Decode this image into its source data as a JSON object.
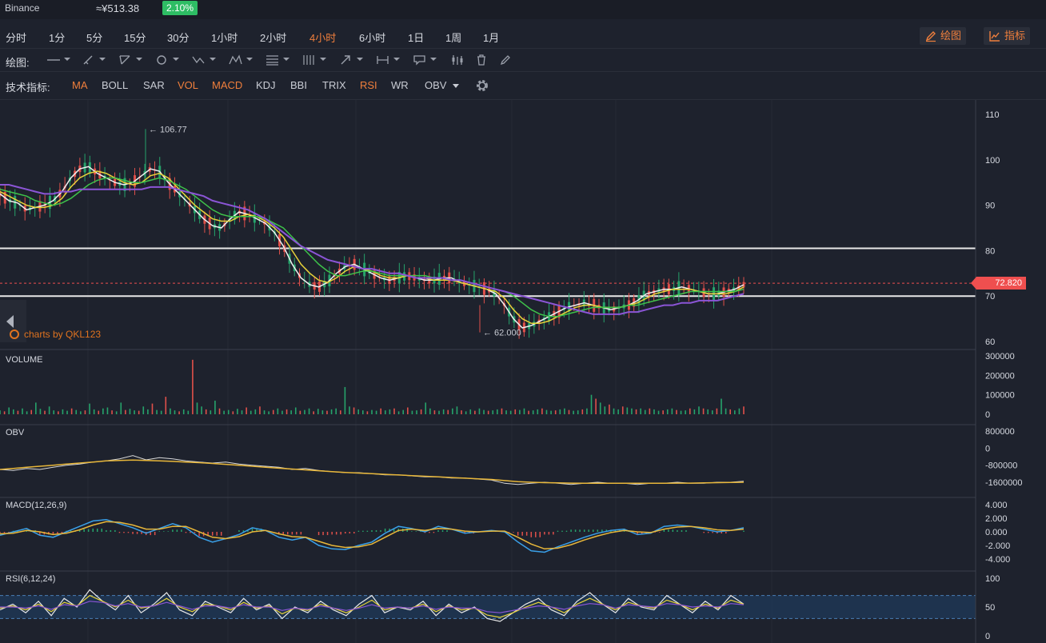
{
  "header": {
    "exchange": "Binance",
    "price": "≈¥513.38",
    "change": "2.10%"
  },
  "timeframes": [
    "分时",
    "1分",
    "5分",
    "15分",
    "30分",
    "1小时",
    "2小时",
    "4小时",
    "6小时",
    "1日",
    "1周",
    "1月"
  ],
  "active_timeframe": "4小时",
  "right_buttons": {
    "draw": "绘图",
    "indicators": "指标"
  },
  "drawing": {
    "label": "绘图:",
    "tools": [
      "horizontal-line-icon",
      "brush-icon",
      "trend-line-icon",
      "circle-icon",
      "zigzag-icon",
      "pattern-icon",
      "fib-levels-icon",
      "vertical-lines-icon",
      "arrow-icon",
      "range-measure-icon",
      "comment-icon",
      "candles-icon",
      "trash-icon",
      "lock-pen-icon"
    ]
  },
  "indicators_bar": {
    "label": "技术指标:",
    "items": [
      {
        "name": "MA",
        "on": true
      },
      {
        "name": "BOLL",
        "on": false
      },
      {
        "name": "SAR",
        "on": false
      },
      {
        "name": "VOL",
        "on": true
      },
      {
        "name": "MACD",
        "on": true
      },
      {
        "name": "KDJ",
        "on": false
      },
      {
        "name": "BBI",
        "on": false
      },
      {
        "name": "TRIX",
        "on": false
      },
      {
        "name": "RSI",
        "on": true
      },
      {
        "name": "WR",
        "on": false
      },
      {
        "name": "OBV",
        "on": false
      }
    ],
    "settings_icon": "gear-icon"
  },
  "watermark": "charts by QKL123",
  "colors": {
    "up": "#26a36b",
    "down": "#e0504a",
    "ma5": "#f0f0f0",
    "ma10": "#e8d33a",
    "ma20": "#3ec24a",
    "ma30": "#ec4d4d",
    "ma60": "#8b55d6",
    "accent": "#f07f3c"
  },
  "chart_data": [
    {
      "type": "candlestick",
      "pane": "price",
      "ylim": [
        60,
        110
      ],
      "yticks": [
        60,
        70,
        80,
        90,
        100,
        110
      ],
      "annotations": {
        "high": "106.77",
        "low": "62.000",
        "last_price": "72.820"
      },
      "horizontal_lines": [
        80.5,
        70
      ],
      "last_price_line": 72.82,
      "series": [
        {
          "name": "MA5",
          "values": [
            92.5,
            91,
            90.5,
            89,
            89.5,
            90,
            91,
            93,
            96,
            98,
            98.5,
            97,
            96,
            95,
            94.5,
            95,
            96.5,
            98,
            97.5,
            95,
            93,
            91,
            89,
            87,
            85.5,
            85,
            87,
            88.5,
            88,
            87,
            86,
            84,
            81,
            77,
            74,
            72.5,
            72,
            73,
            75,
            76.5,
            77,
            76,
            75,
            74,
            73.5,
            74,
            74.5,
            74,
            73.5,
            73.5,
            74,
            74,
            73,
            72.5,
            72,
            71.5,
            70.5,
            68,
            65,
            63,
            63.5,
            64.5,
            65.5,
            66.5,
            67.5,
            68,
            68.5,
            68,
            67.5,
            67,
            67.5,
            68,
            69,
            70.5,
            71,
            71.5,
            71.5,
            72,
            71.5,
            71,
            70.5,
            70.5,
            71,
            71.5,
            72.5
          ]
        },
        {
          "name": "MA10",
          "values": [
            93,
            92,
            91,
            90,
            89.5,
            89.5,
            90,
            91.5,
            94,
            96,
            97,
            97.5,
            97,
            96,
            95,
            94.5,
            95,
            96.5,
            97,
            96,
            94,
            92,
            90,
            88.5,
            87,
            86.5,
            86.5,
            87.5,
            88,
            87.5,
            86.5,
            85,
            83,
            80,
            77,
            75,
            73.5,
            73,
            74,
            75.5,
            76.5,
            76,
            75.5,
            74.5,
            74,
            74,
            74.5,
            74,
            74,
            73.5,
            73.5,
            73.5,
            73,
            72.5,
            72,
            71.5,
            71,
            69.5,
            67,
            65,
            64,
            64,
            64.5,
            65.5,
            66.5,
            67.5,
            68,
            68,
            67.5,
            67.5,
            67.5,
            68,
            68.5,
            69.5,
            70.5,
            71,
            71.5,
            71.5,
            71.5,
            71,
            70.5,
            70.5,
            70.5,
            71,
            72
          ]
        },
        {
          "name": "MA20",
          "values": [
            93.5,
            93,
            92.5,
            92,
            91,
            90.5,
            90,
            90.5,
            91.5,
            93,
            94.5,
            95.5,
            96,
            96,
            95.5,
            95,
            95,
            95.5,
            96,
            95.5,
            94.5,
            93.5,
            92,
            90.5,
            89,
            88,
            87.5,
            87.5,
            87.5,
            87.5,
            87,
            86,
            85,
            83,
            81,
            79,
            77,
            75.5,
            74.5,
            74.5,
            75,
            75.5,
            75.5,
            75,
            74.5,
            74.5,
            74.5,
            74.5,
            74.5,
            74,
            74,
            73.5,
            73.5,
            73,
            72.5,
            72,
            71.5,
            71,
            70,
            68.5,
            67,
            66,
            65.5,
            65.5,
            66,
            66.5,
            67,
            67.5,
            67.5,
            67.5,
            67.5,
            68,
            68,
            68.5,
            69,
            69.5,
            70,
            70.5,
            71,
            71,
            71,
            71,
            71,
            71,
            71.5
          ]
        },
        {
          "name": "MA60",
          "values": [
            94.5,
            94.5,
            94,
            93.5,
            93,
            92.5,
            92.5,
            93,
            93,
            93.5,
            93.5,
            93.5,
            93.5,
            93.5,
            93.5,
            93.5,
            93.5,
            94,
            94,
            94,
            93.5,
            93,
            92.5,
            92,
            91,
            90.5,
            90,
            89.5,
            89,
            88,
            87,
            85.5,
            84,
            82.5,
            81,
            80,
            79,
            78,
            77.5,
            77,
            76.5,
            76,
            76,
            75.5,
            75,
            75,
            74.5,
            74,
            74,
            74,
            74,
            73.5,
            73.5,
            73,
            72.5,
            72,
            71.5,
            71,
            70.5,
            70,
            69.5,
            69,
            68.5,
            68,
            67.5,
            67,
            66.5,
            66,
            66,
            66,
            66,
            66.5,
            66.5,
            67,
            67.5,
            68,
            68,
            68.5,
            68.5,
            69,
            69,
            69,
            69.5,
            70,
            70.5
          ]
        }
      ]
    },
    {
      "type": "bar",
      "pane": "volume",
      "title": "VOLUME",
      "yticks": [
        0,
        100000,
        200000,
        300000
      ],
      "ylim": [
        0,
        300000
      ],
      "values": [
        20000,
        15000,
        35000,
        25000,
        18000,
        30000,
        15000,
        22000,
        60000,
        28000,
        18000,
        40000,
        20000,
        15000,
        25000,
        18000,
        30000,
        22000,
        15000,
        20000,
        55000,
        25000,
        18000,
        30000,
        35000,
        20000,
        15000,
        60000,
        22000,
        28000,
        20000,
        18000,
        40000,
        25000,
        55000,
        22000,
        18000,
        90000,
        30000,
        20000,
        15000,
        25000,
        18000,
        280000,
        60000,
        40000,
        25000,
        20000,
        70000,
        30000,
        18000,
        22000,
        15000,
        28000,
        20000,
        35000,
        18000,
        25000,
        40000,
        20000,
        15000,
        22000,
        30000,
        18000,
        25000,
        20000,
        35000,
        18000,
        22000,
        30000,
        15000,
        28000,
        20000,
        18000,
        25000,
        30000,
        20000,
        140000,
        40000,
        35000,
        25000,
        20000,
        15000,
        22000,
        18000,
        30000,
        20000,
        25000,
        30000,
        15000,
        22000,
        35000,
        18000,
        20000,
        25000,
        60000,
        30000,
        20000,
        18000,
        25000,
        22000,
        30000,
        40000,
        20000,
        15000,
        25000,
        18000,
        30000,
        22000,
        18000,
        20000,
        25000,
        30000,
        20000,
        18000,
        25000,
        22000,
        30000,
        18000,
        20000,
        25000,
        30000,
        22000,
        18000,
        20000,
        25000,
        30000,
        22000,
        18000,
        20000,
        25000,
        30000,
        100000,
        80000,
        60000,
        40000,
        50000,
        30000,
        25000,
        40000,
        35000,
        30000,
        25000,
        30000,
        22000,
        30000,
        25000,
        18000,
        20000,
        25000,
        30000,
        22000,
        18000,
        20000,
        30000,
        25000,
        40000,
        30000,
        25000,
        20000,
        30000,
        80000,
        30000,
        25000,
        20000,
        30000,
        40000
      ]
    },
    {
      "type": "line",
      "pane": "obv",
      "title": "OBV",
      "yticks": [
        800000,
        0,
        -800000,
        -1600000
      ],
      "ylim": [
        -1600000,
        800000
      ],
      "series": [
        {
          "name": "OBV",
          "values": [
            -1000000,
            -1050000,
            -950000,
            -1000000,
            -900000,
            -800000,
            -750000,
            -650000,
            -600000,
            -500000,
            -350000,
            -550000,
            -450000,
            -500000,
            -600000,
            -650000,
            -700000,
            -650000,
            -750000,
            -800000,
            -850000,
            -900000,
            -1000000,
            -950000,
            -1050000,
            -1100000,
            -1150000,
            -1150000,
            -1200000,
            -1250000,
            -1250000,
            -1300000,
            -1350000,
            -1350000,
            -1400000,
            -1400000,
            -1450000,
            -1500000,
            -1650000,
            -1700000,
            -1650000,
            -1600000,
            -1650000,
            -1700000,
            -1650000,
            -1600000,
            -1650000,
            -1650000,
            -1700000,
            -1650000,
            -1650000,
            -1600000,
            -1650000,
            -1650000,
            -1600000,
            -1600000,
            -1550000
          ]
        },
        {
          "name": "OBV-MA",
          "values": [
            -1000000,
            -950000,
            -900000,
            -850000,
            -800000,
            -750000,
            -700000,
            -650000,
            -600000,
            -580000,
            -560000,
            -580000,
            -600000,
            -620000,
            -650000,
            -680000,
            -720000,
            -760000,
            -800000,
            -850000,
            -900000,
            -940000,
            -980000,
            -1020000,
            -1060000,
            -1100000,
            -1140000,
            -1170000,
            -1200000,
            -1230000,
            -1260000,
            -1290000,
            -1320000,
            -1350000,
            -1380000,
            -1410000,
            -1440000,
            -1470000,
            -1520000,
            -1570000,
            -1600000,
            -1620000,
            -1630000,
            -1640000,
            -1650000,
            -1650000,
            -1650000,
            -1650000,
            -1650000,
            -1650000,
            -1650000,
            -1640000,
            -1640000,
            -1630000,
            -1620000,
            -1610000,
            -1600000
          ]
        }
      ]
    },
    {
      "type": "line",
      "pane": "macd",
      "title": "MACD(12,26,9)",
      "yticks": [
        4,
        2,
        0,
        -2,
        -4
      ],
      "ylim": [
        -4,
        4
      ],
      "series": [
        {
          "name": "DIF",
          "values": [
            -0.5,
            0,
            0.5,
            -0.5,
            -0.8,
            0,
            0.8,
            1.6,
            1.8,
            1.2,
            0.6,
            -0.2,
            0.5,
            1.2,
            0.6,
            -0.8,
            -1.5,
            -1.0,
            -0.4,
            0.6,
            0.2,
            -0.8,
            -1.2,
            -0.8,
            -2.0,
            -2.5,
            -2.6,
            -2.0,
            -1.5,
            -0.2,
            0.8,
            0.5,
            0,
            0.8,
            0.4,
            -0.2,
            0,
            0.2,
            0,
            -1.5,
            -2.8,
            -3.0,
            -2.2,
            -1.5,
            -0.8,
            -0.2,
            0.2,
            0.4,
            -0.4,
            -0.2,
            0.8,
            1.0,
            0.8,
            0.4,
            0,
            0.2,
            0.6
          ]
        },
        {
          "name": "DEA",
          "values": [
            -0.3,
            -0.2,
            0.2,
            0,
            -0.4,
            -0.2,
            0.3,
            1.0,
            1.5,
            1.4,
            1.0,
            0.4,
            0.4,
            0.8,
            0.8,
            0,
            -0.8,
            -1.0,
            -0.7,
            0,
            0.2,
            -0.3,
            -0.7,
            -0.8,
            -1.4,
            -2.0,
            -2.3,
            -2.2,
            -1.8,
            -0.8,
            0.2,
            0.4,
            0.2,
            0.5,
            0.4,
            0.1,
            0,
            0.1,
            0.1,
            -0.8,
            -1.8,
            -2.5,
            -2.4,
            -1.9,
            -1.2,
            -0.6,
            -0.1,
            0.2,
            0,
            -0.1,
            0.4,
            0.7,
            0.8,
            0.6,
            0.3,
            0.2,
            0.4
          ]
        }
      ]
    },
    {
      "type": "line",
      "pane": "rsi",
      "title": "RSI(6,12,24)",
      "yticks": [
        100,
        50,
        0
      ],
      "ylim": [
        0,
        100
      ],
      "bands": [
        30,
        70
      ],
      "series": [
        {
          "name": "RSI6",
          "values": [
            45,
            55,
            40,
            60,
            35,
            65,
            50,
            80,
            60,
            45,
            70,
            40,
            55,
            75,
            45,
            35,
            60,
            50,
            40,
            65,
            45,
            55,
            30,
            50,
            40,
            60,
            45,
            35,
            55,
            70,
            40,
            50,
            45,
            60,
            35,
            55,
            40,
            50,
            30,
            25,
            40,
            55,
            65,
            45,
            35,
            60,
            75,
            55,
            40,
            65,
            50,
            45,
            70,
            55,
            40,
            60,
            45,
            70,
            55
          ]
        },
        {
          "name": "RSI12",
          "values": [
            48,
            52,
            45,
            55,
            42,
            58,
            52,
            70,
            60,
            50,
            62,
            48,
            52,
            65,
            50,
            42,
            55,
            52,
            45,
            58,
            48,
            52,
            38,
            48,
            44,
            55,
            48,
            40,
            50,
            62,
            45,
            50,
            48,
            55,
            42,
            52,
            45,
            48,
            36,
            32,
            40,
            50,
            58,
            50,
            40,
            55,
            65,
            55,
            45,
            58,
            52,
            48,
            62,
            55,
            45,
            55,
            48,
            62,
            55
          ]
        },
        {
          "name": "RSI24",
          "values": [
            50,
            50,
            48,
            52,
            46,
            54,
            52,
            60,
            58,
            52,
            56,
            50,
            52,
            58,
            52,
            46,
            52,
            52,
            48,
            54,
            50,
            50,
            44,
            48,
            46,
            52,
            48,
            44,
            48,
            54,
            48,
            50,
            48,
            52,
            46,
            50,
            48,
            48,
            42,
            40,
            44,
            48,
            52,
            50,
            46,
            52,
            56,
            54,
            48,
            54,
            52,
            50,
            56,
            54,
            50,
            52,
            50,
            56,
            54
          ]
        }
      ]
    }
  ]
}
